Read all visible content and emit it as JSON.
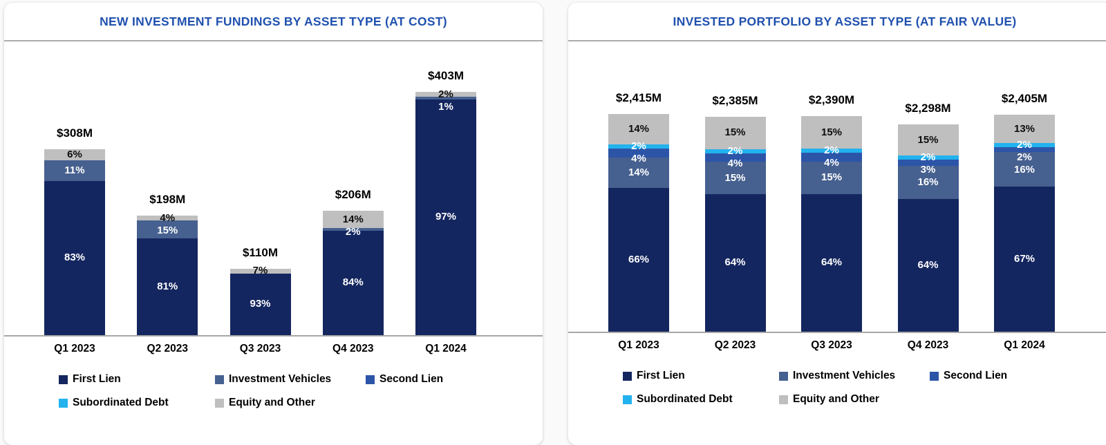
{
  "chart_data": [
    {
      "type": "bar",
      "stacked": true,
      "title": "NEW INVESTMENT FUNDINGS BY ASSET TYPE (AT COST)",
      "categories": [
        "Q1 2023",
        "Q2 2023",
        "Q3 2023",
        "Q4 2023",
        "Q1 2024"
      ],
      "totals": [
        {
          "label": "$308M",
          "value": 308
        },
        {
          "label": "$198M",
          "value": 198
        },
        {
          "label": "$110M",
          "value": 110
        },
        {
          "label": "$206M",
          "value": 206
        },
        {
          "label": "$403M",
          "value": 403
        }
      ],
      "unit": "percent of total, stacked; totals in $M",
      "value_labels": true,
      "legend_position": "bottom",
      "series": [
        {
          "name": "First Lien",
          "color": "#14265f",
          "label_style": "light",
          "values": [
            83,
            81,
            93,
            84,
            97
          ]
        },
        {
          "name": "Investment Vehicles",
          "color": "#46608f",
          "label_style": "light",
          "values": [
            11,
            15,
            0,
            2,
            1
          ]
        },
        {
          "name": "Second Lien",
          "color": "#2c55a8",
          "label_style": "light",
          "values": [
            0,
            0,
            0,
            0,
            0
          ]
        },
        {
          "name": "Subordinated Debt",
          "color": "#22b2ee",
          "label_style": "light",
          "values": [
            0,
            0,
            0,
            0,
            0
          ]
        },
        {
          "name": "Equity and Other",
          "color": "#bfbfbf",
          "label_style": "dark",
          "values": [
            6,
            4,
            7,
            14,
            2
          ]
        }
      ]
    },
    {
      "type": "bar",
      "stacked": true,
      "title": "INVESTED PORTFOLIO BY ASSET TYPE (AT FAIR VALUE)",
      "categories": [
        "Q1 2023",
        "Q2 2023",
        "Q3 2023",
        "Q4 2023",
        "Q1 2024"
      ],
      "totals": [
        {
          "label": "$2,415M",
          "value": 2415
        },
        {
          "label": "$2,385M",
          "value": 2385
        },
        {
          "label": "$2,390M",
          "value": 2390
        },
        {
          "label": "$2,298M",
          "value": 2298
        },
        {
          "label": "$2,405M",
          "value": 2405
        }
      ],
      "unit": "percent of total, stacked; totals in $M",
      "value_labels": true,
      "legend_position": "bottom",
      "series": [
        {
          "name": "First Lien",
          "color": "#14265f",
          "label_style": "light",
          "values": [
            66,
            64,
            64,
            64,
            67
          ]
        },
        {
          "name": "Investment Vehicles",
          "color": "#46608f",
          "label_style": "light",
          "values": [
            14,
            15,
            15,
            16,
            16
          ]
        },
        {
          "name": "Second Lien",
          "color": "#2c55a8",
          "label_style": "light",
          "values": [
            4,
            4,
            4,
            3,
            2
          ]
        },
        {
          "name": "Subordinated Debt",
          "color": "#22b2ee",
          "label_style": "light",
          "values": [
            2,
            2,
            2,
            2,
            2
          ]
        },
        {
          "name": "Equity and Other",
          "color": "#bfbfbf",
          "label_style": "dark",
          "values": [
            14,
            15,
            15,
            15,
            13
          ]
        }
      ]
    }
  ],
  "colors": {
    "title_blue": "#2051ae",
    "axis_gray": "#a6a6a6",
    "first_lien": "#14265f",
    "investment_vehicles": "#46608f",
    "second_lien": "#2c55a8",
    "subordinated_debt": "#22b2ee",
    "equity_and_other": "#bfbfbf"
  }
}
